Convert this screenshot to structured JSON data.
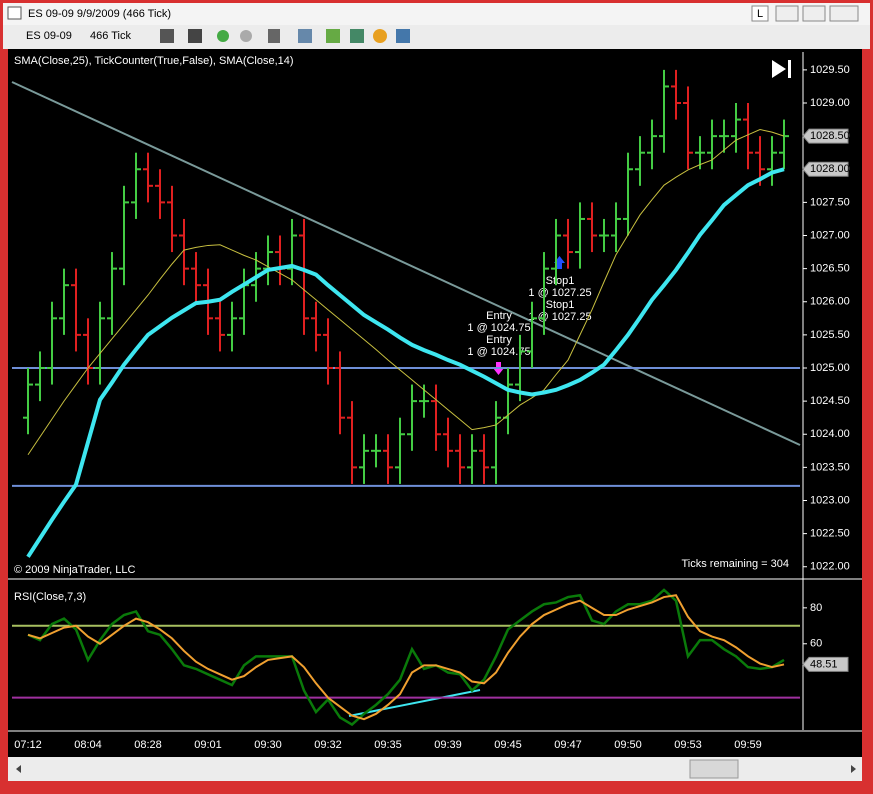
{
  "window": {
    "title": "ES 09-09  9/9/2009 (466 Tick)",
    "button": "L"
  },
  "toolbar": {
    "instrument": "ES 09-09",
    "period": "466 Tick"
  },
  "chart_data": [
    {
      "type": "ohlc",
      "subtitle": "SMA(Close,25), TickCounter(True,False), SMA(Close,14)",
      "copyright": "© 2009 NinjaTrader, LLC",
      "ticks_remaining": "Ticks remaining = 304",
      "up_color": "#44cc44",
      "down_color": "#e02020",
      "open": [
        1024.25,
        1024.75,
        1025.0,
        1025.75,
        1026.25,
        1025.5,
        1025.0,
        1025.75,
        1026.5,
        1027.5,
        1028.0,
        1027.75,
        1027.5,
        1027.0,
        1026.5,
        1026.25,
        1025.75,
        1025.5,
        1025.75,
        1026.25,
        1026.5,
        1026.75,
        1026.5,
        1027.0,
        1025.75,
        1025.5,
        1025.0,
        1024.25,
        1023.5,
        1023.75,
        1023.75,
        1023.5,
        1024.0,
        1024.5,
        1024.5,
        1024.0,
        1023.75,
        1023.5,
        1023.75,
        1023.5,
        1024.25,
        1024.75,
        1025.25,
        1025.75,
        1026.5,
        1027.0,
        1026.75,
        1027.25,
        1027.0,
        1027.0,
        1027.25,
        1028.0,
        1028.25,
        1028.5,
        1029.25,
        1029.0,
        1028.25,
        1028.25,
        1028.5,
        1028.5,
        1028.75,
        1028.25,
        1028.0,
        1028.25
      ],
      "high": [
        1025.0,
        1025.25,
        1026.0,
        1026.5,
        1026.5,
        1025.75,
        1026.0,
        1026.75,
        1027.75,
        1028.25,
        1028.25,
        1028.0,
        1027.75,
        1027.25,
        1026.75,
        1026.5,
        1026.0,
        1026.0,
        1026.5,
        1026.75,
        1027.0,
        1027.0,
        1027.25,
        1027.25,
        1026.0,
        1025.75,
        1025.25,
        1024.5,
        1024.0,
        1024.0,
        1024.0,
        1024.25,
        1024.75,
        1024.75,
        1024.75,
        1024.25,
        1024.0,
        1024.0,
        1024.0,
        1024.5,
        1025.0,
        1025.5,
        1026.0,
        1026.75,
        1027.25,
        1027.25,
        1027.5,
        1027.5,
        1027.25,
        1027.5,
        1028.25,
        1028.5,
        1028.75,
        1029.5,
        1029.5,
        1029.25,
        1028.5,
        1028.75,
        1028.75,
        1029.0,
        1029.0,
        1028.5,
        1028.5,
        1028.75
      ],
      "low": [
        1024.0,
        1024.5,
        1024.75,
        1025.5,
        1025.25,
        1024.75,
        1024.75,
        1025.5,
        1026.25,
        1027.25,
        1027.5,
        1027.25,
        1026.75,
        1026.25,
        1026.0,
        1025.5,
        1025.25,
        1025.25,
        1025.5,
        1026.0,
        1026.25,
        1026.25,
        1026.25,
        1025.5,
        1025.25,
        1024.75,
        1024.0,
        1023.25,
        1023.25,
        1023.5,
        1023.25,
        1023.25,
        1023.75,
        1024.25,
        1023.75,
        1023.5,
        1023.25,
        1023.25,
        1023.25,
        1023.25,
        1024.0,
        1024.5,
        1025.0,
        1025.5,
        1026.25,
        1026.5,
        1026.5,
        1026.75,
        1026.75,
        1026.75,
        1027.0,
        1027.75,
        1028.0,
        1028.25,
        1028.75,
        1028.0,
        1028.0,
        1028.0,
        1028.25,
        1028.25,
        1028.0,
        1027.75,
        1027.75,
        1028.0
      ],
      "close": [
        1024.75,
        1025.0,
        1025.75,
        1026.25,
        1025.5,
        1025.0,
        1025.75,
        1026.5,
        1027.5,
        1028.0,
        1027.75,
        1027.5,
        1027.0,
        1026.5,
        1026.25,
        1025.75,
        1025.5,
        1025.75,
        1026.25,
        1026.5,
        1026.75,
        1026.5,
        1027.0,
        1025.75,
        1025.5,
        1025.0,
        1024.25,
        1023.5,
        1023.75,
        1023.75,
        1023.5,
        1024.0,
        1024.5,
        1024.5,
        1024.0,
        1023.75,
        1023.5,
        1023.75,
        1023.5,
        1024.25,
        1024.75,
        1025.25,
        1025.75,
        1026.5,
        1027.0,
        1026.75,
        1027.25,
        1027.0,
        1027.0,
        1027.25,
        1028.0,
        1028.25,
        1028.5,
        1029.25,
        1029.0,
        1028.25,
        1028.25,
        1028.5,
        1028.5,
        1028.75,
        1028.25,
        1028.0,
        1028.25,
        1028.5
      ],
      "overlays": [
        {
          "color": "#c8c040",
          "width": 1,
          "values": [
            1023.69,
            1023.96,
            1024.23,
            1024.5,
            1024.75,
            1025.0,
            1025.22,
            1025.44,
            1025.66,
            1025.88,
            1026.1,
            1026.34,
            1026.57,
            1026.78,
            1026.82,
            1026.85,
            1026.86,
            1026.78,
            1026.7,
            1026.63,
            1026.53,
            1026.43,
            1026.33,
            1026.18,
            1026.03,
            1025.88,
            1025.73,
            1025.58,
            1025.43,
            1025.28,
            1025.12,
            1024.97,
            1024.82,
            1024.67,
            1024.52,
            1024.37,
            1024.22,
            1024.07,
            1024.1,
            1024.14,
            1024.29,
            1024.44,
            1024.55,
            1024.67,
            1024.9,
            1025.12,
            1025.5,
            1025.88,
            1026.3,
            1026.71,
            1027.01,
            1027.31,
            1027.54,
            1027.76,
            1027.88,
            1027.99,
            1028.07,
            1028.14,
            1028.29,
            1028.44,
            1028.52,
            1028.6,
            1028.56,
            1028.5
          ]
        },
        {
          "color": "#3ee6f0",
          "width": 4,
          "values": [
            1022.15,
            1022.43,
            1022.71,
            1022.98,
            1023.24,
            1023.88,
            1024.52,
            1024.78,
            1025.05,
            1025.28,
            1025.5,
            1025.63,
            1025.76,
            1025.87,
            1025.98,
            1026.0,
            1026.03,
            1026.15,
            1026.26,
            1026.37,
            1026.48,
            1026.51,
            1026.54,
            1026.48,
            1026.41,
            1026.25,
            1026.1,
            1025.95,
            1025.8,
            1025.69,
            1025.58,
            1025.46,
            1025.35,
            1025.27,
            1025.2,
            1025.12,
            1025.05,
            1024.96,
            1024.87,
            1024.77,
            1024.67,
            1024.63,
            1024.6,
            1024.63,
            1024.67,
            1024.74,
            1024.82,
            1024.93,
            1025.05,
            1025.27,
            1025.5,
            1025.76,
            1026.03,
            1026.25,
            1026.48,
            1026.74,
            1027.01,
            1027.23,
            1027.46,
            1027.61,
            1027.76,
            1027.85,
            1027.95,
            1028.0
          ]
        }
      ],
      "hlines": [
        {
          "value": 1025.0,
          "color": "#6f8fd8"
        },
        {
          "value": 1023.22,
          "color": "#6f8fd8"
        }
      ],
      "markers": [
        {
          "value": 1028.5,
          "label": "1028.50"
        },
        {
          "value": 1028.0,
          "label": "1028.00"
        }
      ],
      "annotations": [
        "Entry",
        "1 @ 1024.75",
        "Entry",
        "1 @ 1024.75",
        "Stop1",
        "1 @ 1027.25",
        "Stop1",
        "1 @ 1027.25"
      ],
      "ylim": [
        1021.83,
        1029.77
      ],
      "yticks": [
        {
          "value": 1022,
          "label": "1022.00"
        },
        {
          "value": 1022.5,
          "label": "1022.50"
        },
        {
          "value": 1023,
          "label": "1023.00"
        },
        {
          "value": 1023.5,
          "label": "1023.50"
        },
        {
          "value": 1024,
          "label": "1024.00"
        },
        {
          "value": 1024.5,
          "label": "1024.50"
        },
        {
          "value": 1025,
          "label": "1025.00"
        },
        {
          "value": 1025.5,
          "label": "1025.50"
        },
        {
          "value": 1026,
          "label": "1026.00"
        },
        {
          "value": 1026.5,
          "label": "1026.50"
        },
        {
          "value": 1027,
          "label": "1027.00"
        },
        {
          "value": 1027.5,
          "label": "1027.50"
        },
        {
          "value": 1028,
          "label": "1028.00"
        },
        {
          "value": 1028.5,
          "label": "1028.50"
        },
        {
          "value": 1029,
          "label": "1029.00"
        },
        {
          "value": 1029.5,
          "label": "1029.50"
        }
      ]
    },
    {
      "type": "line",
      "title": "RSI(Close,7,3)",
      "categories": [
        "07:12",
        null,
        null,
        null,
        null,
        "08:04",
        null,
        null,
        null,
        null,
        "08:28",
        null,
        null,
        null,
        null,
        "09:01",
        null,
        null,
        null,
        null,
        "09:30",
        null,
        null,
        null,
        null,
        "09:32",
        null,
        null,
        null,
        null,
        "09:35",
        null,
        null,
        null,
        null,
        "09:39",
        null,
        null,
        null,
        null,
        "09:45",
        null,
        null,
        null,
        null,
        "09:47",
        null,
        null,
        null,
        null,
        "09:50",
        null,
        null,
        null,
        null,
        "09:53",
        null,
        null,
        null,
        null,
        "09:59",
        null,
        null,
        null
      ],
      "series": [
        {
          "color": "#0a7a0a",
          "width": 2.5,
          "values": [
            65,
            62,
            71,
            74,
            68,
            51,
            62,
            71,
            76,
            78,
            67,
            65,
            57,
            48,
            46,
            43,
            40,
            37,
            48,
            53,
            53,
            53,
            53,
            34,
            22,
            29,
            19,
            15,
            21,
            26,
            32,
            40,
            57,
            46,
            48,
            44,
            43,
            34,
            40,
            53,
            68,
            73,
            78,
            82,
            83,
            86,
            87,
            73,
            71,
            78,
            82,
            82,
            84,
            90,
            84,
            53,
            62,
            62,
            57,
            53,
            47,
            46,
            47,
            51
          ]
        },
        {
          "color": "#f0a030",
          "width": 2,
          "values": [
            65,
            63,
            66,
            69,
            70,
            64,
            60,
            65,
            70,
            74,
            72,
            68,
            63,
            56,
            50,
            46,
            43,
            40,
            42,
            47,
            51,
            52,
            53,
            47,
            38,
            30,
            25,
            20,
            18,
            21,
            26,
            32,
            44,
            48,
            48,
            46,
            44,
            39,
            38,
            44,
            55,
            64,
            71,
            76,
            79,
            82,
            84,
            80,
            76,
            76,
            79,
            81,
            83,
            86,
            87,
            75,
            67,
            64,
            62,
            58,
            53,
            49,
            47,
            48.51
          ]
        }
      ],
      "hlines": [
        {
          "value": 70,
          "color": "#a8c060"
        },
        {
          "value": 30,
          "color": "#a030a0"
        }
      ],
      "markers": [
        {
          "value": 48.51,
          "label": "48.51"
        }
      ],
      "ylim": [
        12,
        95.5
      ],
      "yticks": [
        60,
        80
      ]
    }
  ]
}
